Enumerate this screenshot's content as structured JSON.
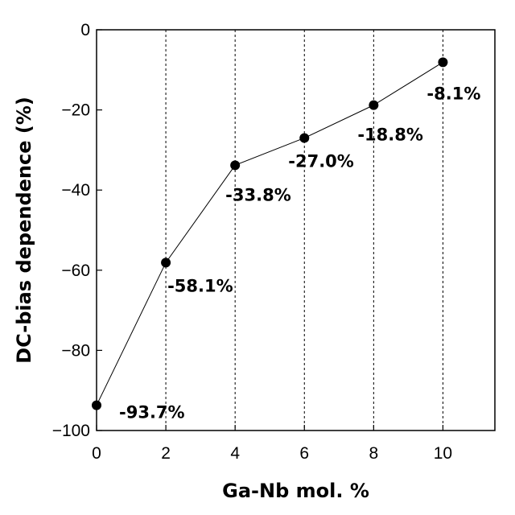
{
  "chart_data": {
    "type": "line",
    "title": "",
    "xlabel": "Ga-Nb  mol. %",
    "ylabel": "DC-bias dependence (%)",
    "xlim": [
      0,
      11.5
    ],
    "ylim": [
      -100,
      0
    ],
    "xticks": [
      0,
      2,
      4,
      6,
      8,
      10
    ],
    "yticks": [
      0,
      -20,
      -40,
      -60,
      -80,
      -100
    ],
    "ytick_labels": [
      "0",
      "−20",
      "−40",
      "−60",
      "−80",
      "−100"
    ],
    "grid": "vertical dashed at x ticks",
    "series": [
      {
        "x": [
          0,
          2,
          4,
          6,
          8,
          10
        ],
        "y": [
          -93.7,
          -58.1,
          -33.8,
          -27.0,
          -18.8,
          -8.1
        ],
        "labels": [
          "-93.7%",
          "-58.1%",
          "-33.8%",
          "-27.0%",
          "-18.8%",
          "-8.1%"
        ],
        "color": "#000000",
        "marker": "filled-circle"
      }
    ]
  }
}
